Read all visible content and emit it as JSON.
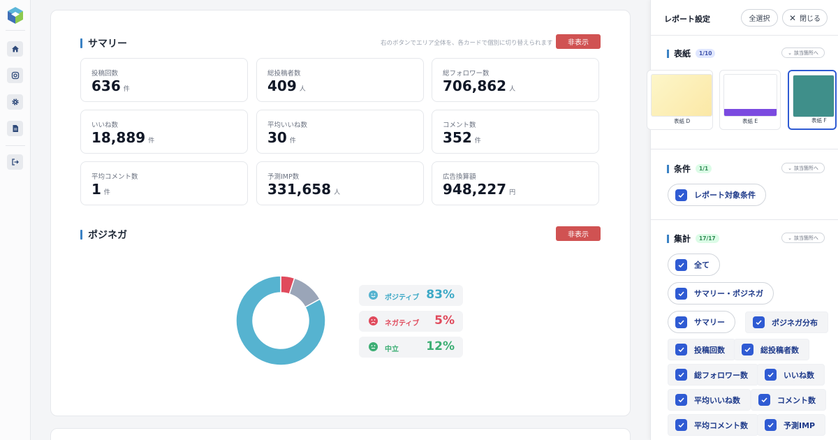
{
  "colors": {
    "accent": "#3b82c4",
    "danger": "#d05252",
    "positive": "#56b3d0",
    "negative": "#e04a5c",
    "neutral": "#9aa5b8",
    "neutral_text": "#3dae74",
    "checkbox": "#2f5bd3"
  },
  "nav": {
    "icons": [
      "logo-icon",
      "home-icon",
      "instagram-icon",
      "gear-icon",
      "document-icon",
      "logout-icon"
    ]
  },
  "summary": {
    "title": "サマリー",
    "hint": "右のボタンでエリア全体を、各カードで個別に切り替えられます",
    "hide_label": "非表示",
    "stats": [
      {
        "label": "投稿回数",
        "value": "636",
        "unit": "件"
      },
      {
        "label": "総投稿者数",
        "value": "409",
        "unit": "人"
      },
      {
        "label": "総フォロワー数",
        "value": "706,862",
        "unit": "人"
      },
      {
        "label": "いいね数",
        "value": "18,889",
        "unit": "件"
      },
      {
        "label": "平均いいね数",
        "value": "30",
        "unit": "件"
      },
      {
        "label": "コメント数",
        "value": "352",
        "unit": "件"
      },
      {
        "label": "平均コメント数",
        "value": "1",
        "unit": "件"
      },
      {
        "label": "予測IMP数",
        "value": "331,658",
        "unit": "人"
      },
      {
        "label": "広告換算額",
        "value": "948,227",
        "unit": "円"
      }
    ]
  },
  "posinega": {
    "title": "ポジネガ",
    "hide_label": "非表示"
  },
  "chart_data": {
    "type": "pie",
    "title": "ポジネガ",
    "categories": [
      "ポジティブ",
      "ネガティブ",
      "中立"
    ],
    "values": [
      83,
      5,
      12
    ],
    "display": [
      "83%",
      "5%",
      "12%"
    ],
    "colors": [
      "#56b3d0",
      "#e04a5c",
      "#9aa5b8"
    ],
    "text_colors": [
      "#3da9c6",
      "#e04a5c",
      "#3dae74"
    ],
    "donut": true
  },
  "panel": {
    "title": "レポート設定",
    "select_all": "全選択",
    "close": "閉じる",
    "jump_label": "該当箇所へ",
    "cover": {
      "title": "表紙",
      "count": "1/10",
      "thumbs": [
        "表紙 D",
        "表紙 E",
        "表紙 F"
      ]
    },
    "condition": {
      "title": "条件",
      "count": "1/1",
      "items": [
        "レポート対象条件"
      ]
    },
    "aggregate": {
      "title": "集計",
      "count": "17/17",
      "items": [
        "全て",
        "サマリー・ポジネガ",
        "サマリー",
        "ポジネガ分布",
        "投稿回数",
        "総投稿者数",
        "総フォロワー数",
        "いいね数",
        "平均いいね数",
        "コメント数",
        "平均コメント数",
        "予測IMP"
      ]
    }
  }
}
